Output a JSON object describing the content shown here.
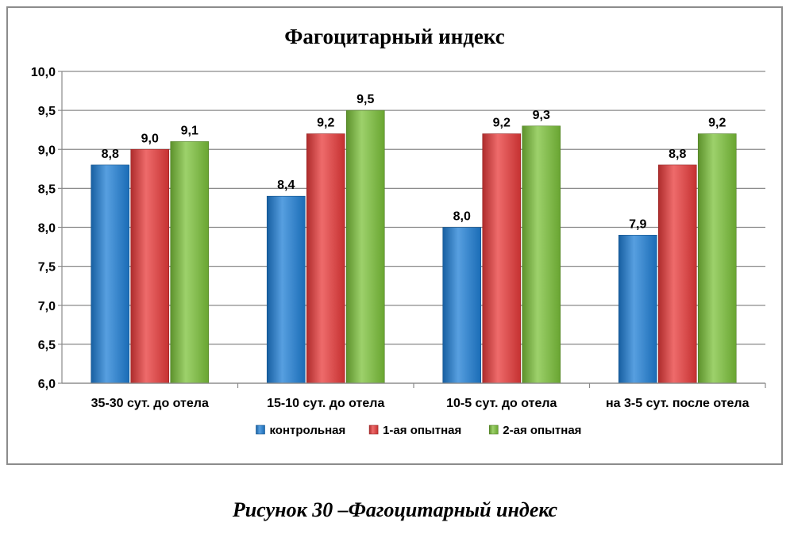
{
  "chart_data": {
    "type": "bar",
    "title": "Фагоцитарный индекс",
    "categories": [
      "35-30 сут. до отела",
      "15-10 сут. до отела",
      "10-5 сут. до отела",
      "на 3-5 сут. после отела"
    ],
    "series": [
      {
        "name": "контрольная",
        "values": [
          8.8,
          8.4,
          8.0,
          7.9
        ],
        "labels": [
          "8,8",
          "8,4",
          "8,0",
          "7,9"
        ],
        "color": "#1f7fd6"
      },
      {
        "name": "1-ая опытная",
        "values": [
          9.0,
          9.2,
          9.2,
          8.8
        ],
        "labels": [
          "9,0",
          "9,2",
          "9,2",
          "8,8"
        ],
        "color": "#e83a3a"
      },
      {
        "name": "2-ая опытная",
        "values": [
          9.1,
          9.5,
          9.3,
          9.2
        ],
        "labels": [
          "9,1",
          "9,5",
          "9,3",
          "9,2"
        ],
        "color": "#7cc23a"
      }
    ],
    "ylim": [
      6.0,
      10.0
    ],
    "yticks": [
      6.0,
      6.5,
      7.0,
      7.5,
      8.0,
      8.5,
      9.0,
      9.5,
      10.0
    ],
    "ytick_labels": [
      "6,0",
      "6,5",
      "7,0",
      "7,5",
      "8,0",
      "8,5",
      "9,0",
      "9,5",
      "10,0"
    ],
    "grid": true,
    "legend": "bottom"
  },
  "caption": "Рисунок 30 –Фагоцитарный индекс"
}
